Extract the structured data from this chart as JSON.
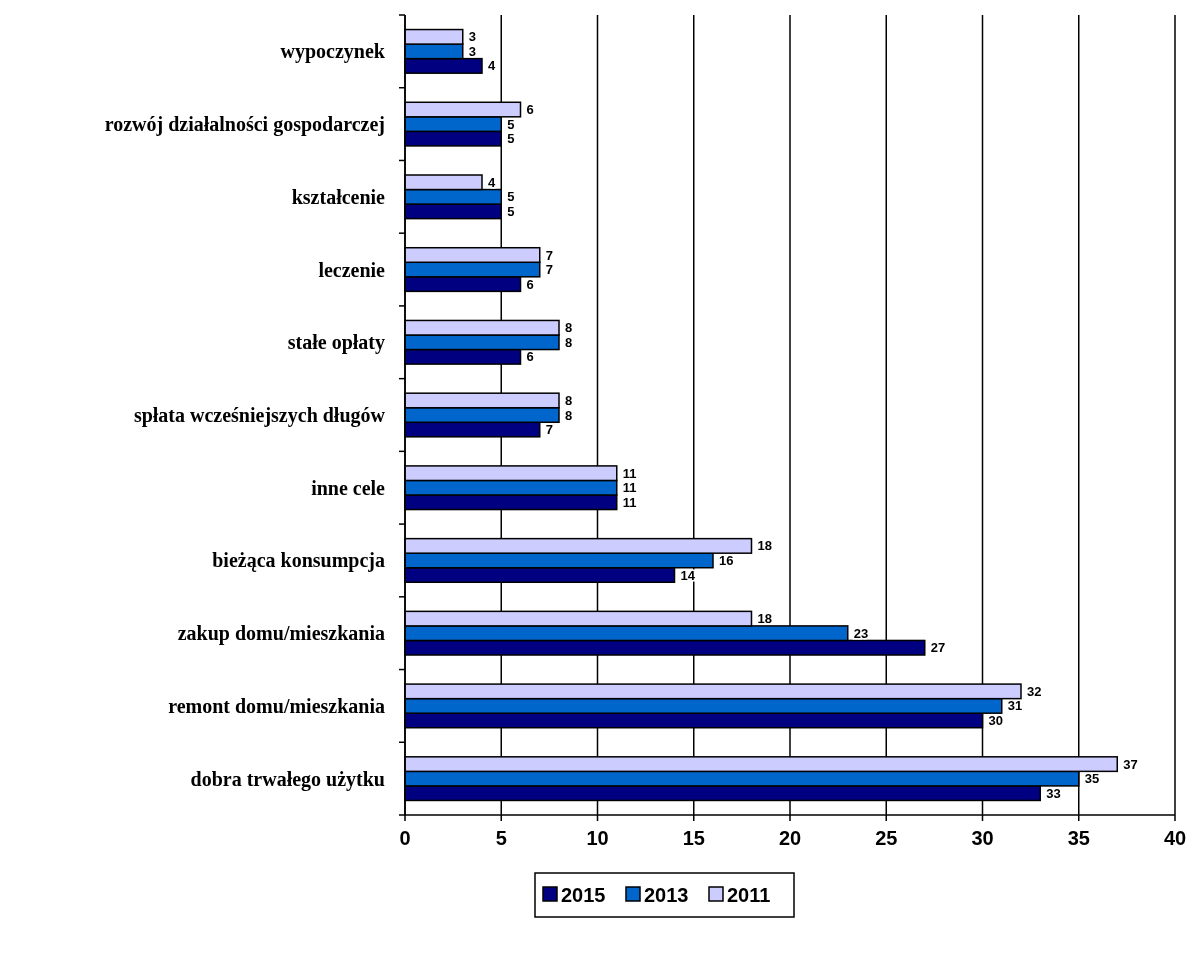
{
  "chart_data": {
    "type": "bar",
    "orientation": "horizontal",
    "categories": [
      "wypoczynek",
      "rozwój działalności gospodarczej",
      "kształcenie",
      "leczenie",
      "stałe opłaty",
      "spłata wcześniejszych długów",
      "inne cele",
      "bieżąca konsumpcja",
      "zakup domu/mieszkania",
      "remont domu/mieszkania",
      "dobra trwałego użytku"
    ],
    "series": [
      {
        "name": "2015",
        "color": "#000080",
        "values": [
          4,
          5,
          5,
          6,
          6,
          7,
          11,
          14,
          27,
          30,
          33
        ]
      },
      {
        "name": "2013",
        "color": "#0066cc",
        "values": [
          3,
          5,
          5,
          7,
          8,
          8,
          11,
          16,
          23,
          31,
          35
        ]
      },
      {
        "name": "2011",
        "color": "#ccccff",
        "values": [
          3,
          6,
          4,
          7,
          8,
          8,
          11,
          18,
          18,
          32,
          37
        ]
      }
    ],
    "xlim": [
      0,
      40
    ],
    "xticks": [
      0,
      5,
      10,
      15,
      20,
      25,
      30,
      35,
      40
    ],
    "grid": "x",
    "legend": "bottom",
    "data_labels": true
  }
}
